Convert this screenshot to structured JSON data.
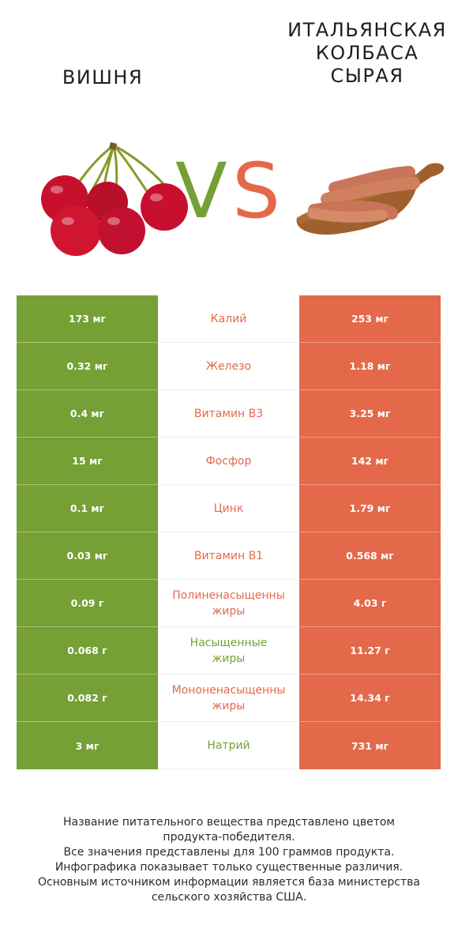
{
  "header": {
    "left_title": "ВИШНЯ",
    "right_title_lines": [
      "ИТАЛЬЯНСКАЯ",
      "КОЛБАСА",
      "СЫРАЯ"
    ],
    "vs_v": "V",
    "vs_s": "S"
  },
  "colors": {
    "left": "#75a035",
    "right": "#e4694a"
  },
  "rows": [
    {
      "left": "173 мг",
      "nutrient": "Калий",
      "right": "253 мг",
      "winner": "right"
    },
    {
      "left": "0.32 мг",
      "nutrient": "Железо",
      "right": "1.18 мг",
      "winner": "right"
    },
    {
      "left": "0.4 мг",
      "nutrient": "Витамин B3",
      "right": "3.25 мг",
      "winner": "right"
    },
    {
      "left": "15 мг",
      "nutrient": "Фосфор",
      "right": "142 мг",
      "winner": "right"
    },
    {
      "left": "0.1 мг",
      "nutrient": "Цинк",
      "right": "1.79 мг",
      "winner": "right"
    },
    {
      "left": "0.03 мг",
      "nutrient": "Витамин B1",
      "right": "0.568 мг",
      "winner": "right"
    },
    {
      "left": "0.09 г",
      "nutrient": "Полиненасыщенные жиры",
      "right": "4.03 г",
      "winner": "right",
      "nutrient_lines": [
        "Полиненасыщенны",
        "жиры"
      ]
    },
    {
      "left": "0.068 г",
      "nutrient": "Насыщенные жиры",
      "right": "11.27 г",
      "winner": "left",
      "nutrient_lines": [
        "Насыщенные",
        "жиры"
      ]
    },
    {
      "left": "0.082 г",
      "nutrient": "Мононенасыщенные жиры",
      "right": "14.34 г",
      "winner": "right",
      "nutrient_lines": [
        "Мононенасыщенны",
        "жиры"
      ]
    },
    {
      "left": "3 мг",
      "nutrient": "Натрий",
      "right": "731 мг",
      "winner": "left"
    }
  ],
  "footer": {
    "lines": [
      "Название питательного вещества представлено цветом",
      "продукта-победителя.",
      "Все значения представлены для 100 граммов продукта.",
      "Инфографика показывает только существенные различия.",
      "Основным источником информации является база министерства",
      "сельского хозяйства США."
    ]
  },
  "images": {
    "left": "cherry-icon",
    "right": "sausage-board-icon"
  }
}
